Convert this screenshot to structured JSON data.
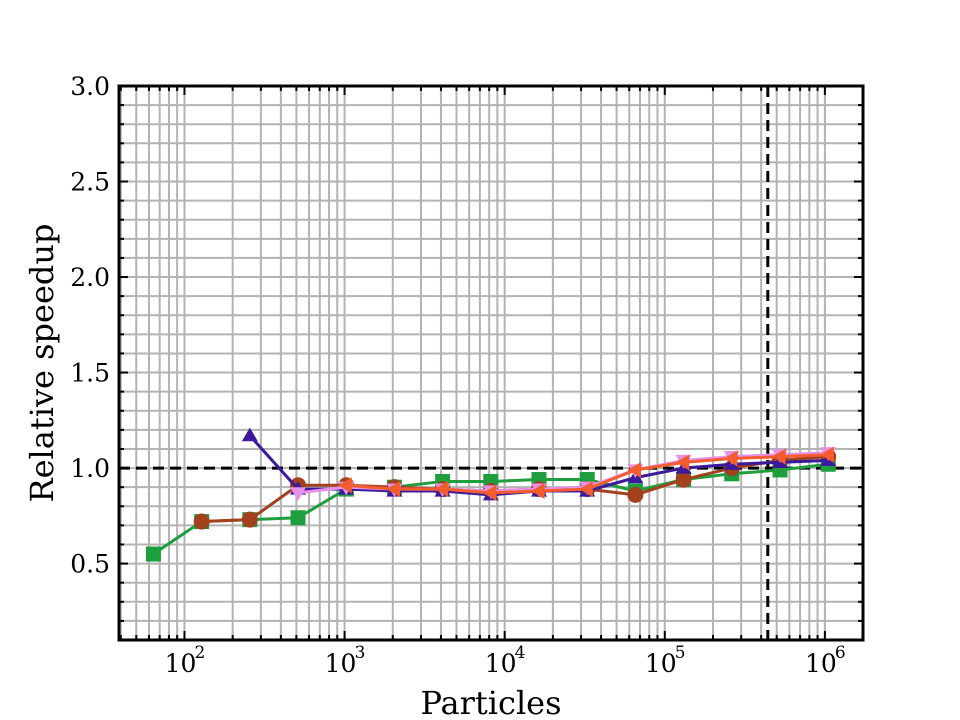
{
  "chart_data": {
    "type": "line",
    "title": "",
    "xlabel": "Particles",
    "ylabel": "Relative speedup",
    "xscale": "log",
    "xlim": [
      39,
      1730000
    ],
    "ylim": [
      0.1,
      3.0
    ],
    "grid": true,
    "grid_minor": true,
    "legend": null,
    "x_ticks": [
      {
        "base": "10",
        "exp": "2",
        "value": 100
      },
      {
        "base": "10",
        "exp": "3",
        "value": 1000
      },
      {
        "base": "10",
        "exp": "4",
        "value": 10000
      },
      {
        "base": "10",
        "exp": "5",
        "value": 100000
      },
      {
        "base": "10",
        "exp": "6",
        "value": 1000000
      }
    ],
    "y_ticks": [
      "0.5",
      "1.0",
      "1.5",
      "2.0",
      "2.5",
      "3.0"
    ],
    "reference_lines": [
      {
        "orientation": "horizontal",
        "value": 1.0,
        "style": "dashed",
        "color": "#000000"
      },
      {
        "orientation": "vertical",
        "value": 440000,
        "style": "dashed",
        "color": "#000000"
      }
    ],
    "series": [
      {
        "name": "green-squares",
        "color": "#1f9e3e",
        "marker": "square",
        "x": [
          64,
          128,
          256,
          512,
          1024,
          2048,
          4096,
          8192,
          16384,
          32768,
          65536,
          131072,
          262144,
          524288,
          1048576
        ],
        "values": [
          0.55,
          0.72,
          0.73,
          0.74,
          0.89,
          0.9,
          0.93,
          0.93,
          0.94,
          0.94,
          0.88,
          0.94,
          0.97,
          0.99,
          1.02
        ]
      },
      {
        "name": "brown-circles",
        "color": "#a3401d",
        "marker": "circle",
        "x": [
          128,
          256,
          512,
          1024,
          2048,
          4096,
          8192,
          16384,
          32768,
          65536,
          131072,
          262144,
          524288,
          1048576
        ],
        "values": [
          0.72,
          0.73,
          0.91,
          0.91,
          0.9,
          0.89,
          0.88,
          0.89,
          0.89,
          0.86,
          0.94,
          1.0,
          1.04,
          1.06
        ]
      },
      {
        "name": "indigo-triangles-up",
        "color": "#3b1a9c",
        "marker": "triangle-up",
        "x": [
          256,
          512,
          1024,
          2048,
          4096,
          8192,
          16384,
          32768,
          65536,
          131072,
          262144,
          524288,
          1048576
        ],
        "values": [
          1.17,
          0.89,
          0.89,
          0.88,
          0.88,
          0.86,
          0.88,
          0.88,
          0.95,
          1.0,
          1.02,
          1.03,
          1.04
        ]
      },
      {
        "name": "pink-triangles-down",
        "color": "#e890e8",
        "marker": "triangle-down",
        "x": [
          512,
          1024,
          2048,
          4096,
          8192,
          16384,
          32768,
          65536,
          131072,
          262144,
          524288,
          1048576
        ],
        "values": [
          0.87,
          0.9,
          0.89,
          0.89,
          0.88,
          0.89,
          0.9,
          0.99,
          1.04,
          1.06,
          1.07,
          1.08
        ]
      },
      {
        "name": "orange-triangles-left",
        "color": "#f25c2e",
        "marker": "triangle-left",
        "x": [
          1024,
          2048,
          4096,
          8192,
          16384,
          32768,
          65536,
          131072,
          262144,
          524288,
          1048576
        ],
        "values": [
          0.91,
          0.89,
          0.89,
          0.87,
          0.88,
          0.89,
          0.99,
          1.03,
          1.05,
          1.06,
          1.07
        ]
      }
    ]
  }
}
